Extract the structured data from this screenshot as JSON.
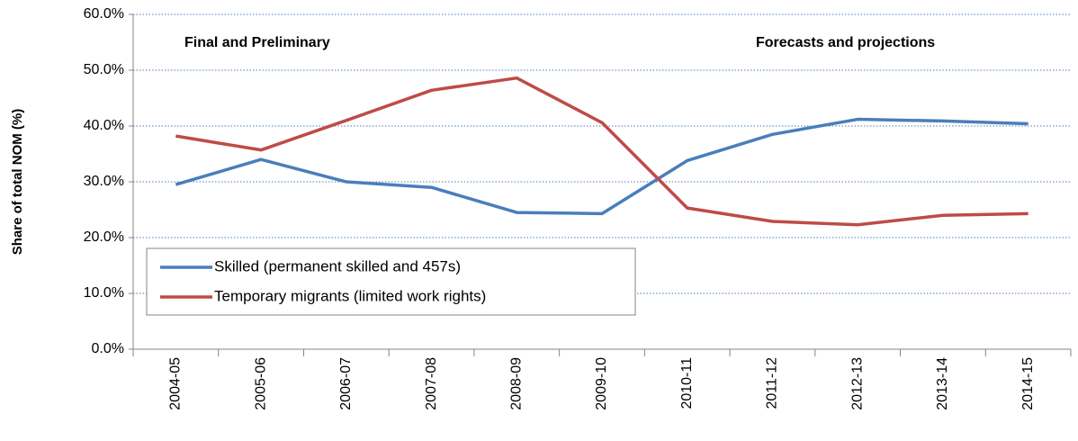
{
  "chart_data": {
    "type": "line",
    "y_label": "Share of total NOM (%)",
    "annotations": [
      "Final and Preliminary",
      "Forecasts and projections"
    ],
    "categories": [
      "2004-05",
      "2005-06",
      "2006-07",
      "2007-08",
      "2008-09",
      "2009-10",
      "2010-11",
      "2011-12",
      "2012-13",
      "2013-14",
      "2014-15"
    ],
    "series": [
      {
        "name": "Skilled (permanent skilled and 457s)",
        "color": "#4a7ebb",
        "values": [
          29.5,
          34.0,
          30.0,
          29.0,
          24.5,
          24.3,
          33.8,
          38.5,
          41.2,
          40.9,
          40.4
        ]
      },
      {
        "name": "Temporary migrants (limited work rights)",
        "color": "#be4b48",
        "values": [
          38.2,
          35.7,
          41.0,
          46.4,
          48.6,
          40.6,
          25.3,
          22.9,
          22.3,
          24.0,
          24.3
        ]
      }
    ],
    "ylim": [
      0,
      60
    ],
    "yticks": [
      {
        "value": 0,
        "label": "0.0%"
      },
      {
        "value": 10,
        "label": "10.0%"
      },
      {
        "value": 20,
        "label": "20.0%"
      },
      {
        "value": 30,
        "label": "30.0%"
      },
      {
        "value": 40,
        "label": "40.0%"
      },
      {
        "value": 50,
        "label": "50.0%"
      },
      {
        "value": 60,
        "label": "60.0%"
      }
    ],
    "grid": true
  }
}
